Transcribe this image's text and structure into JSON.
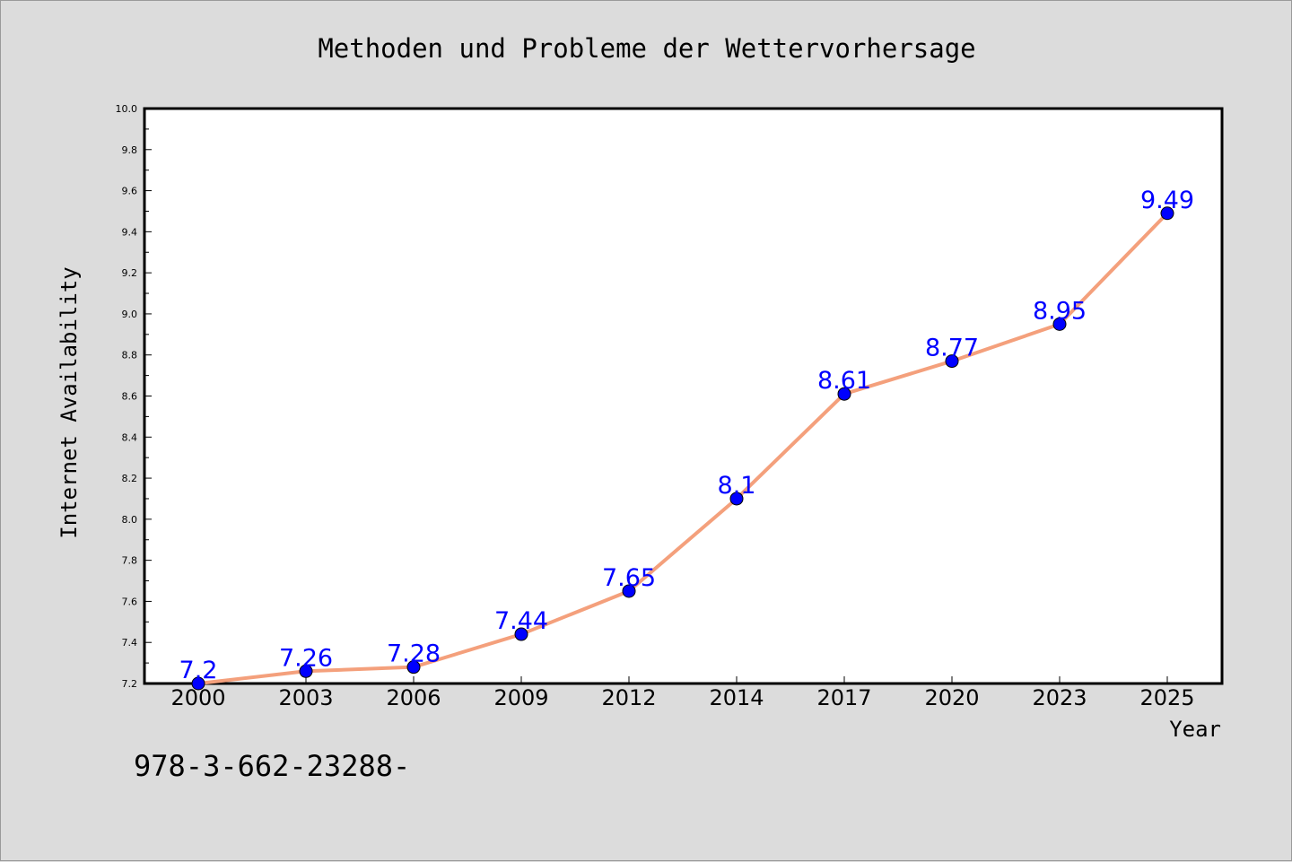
{
  "chart_data": {
    "type": "line",
    "title": "Methoden und Probleme der Wettervorhersage",
    "xlabel": "Year",
    "ylabel": "Internet Availability",
    "categories": [
      "2000",
      "2003",
      "2006",
      "2009",
      "2012",
      "2014",
      "2017",
      "2020",
      "2023",
      "2025"
    ],
    "series": [
      {
        "values": [
          7.2,
          7.26,
          7.28,
          7.44,
          7.65,
          8.1,
          8.61,
          8.77,
          8.95,
          9.49
        ],
        "data_labels": [
          "7.2",
          "7.26",
          "7.28",
          "7.44",
          "7.65",
          "8.1",
          "8.61",
          "8.77",
          "8.95",
          "9.49"
        ],
        "line_color": "#f4a07c",
        "marker_color": "#0000ff"
      }
    ],
    "ylim": [
      7.2,
      10.0
    ],
    "yticks": [
      "7.2",
      "7.4",
      "7.6",
      "7.8",
      "8.0",
      "8.2",
      "8.4",
      "8.6",
      "8.8",
      "9.0",
      "9.2",
      "9.4",
      "9.6",
      "9.8",
      "10.0"
    ],
    "grid": false,
    "legend": "none"
  },
  "footer_text": "978-3-662-23288-",
  "colors": {
    "background": "#dcdcdc",
    "plot_background": "#ffffff",
    "line": "#f4a07c",
    "marker": "#0000ff",
    "data_label": "#0000ff"
  }
}
